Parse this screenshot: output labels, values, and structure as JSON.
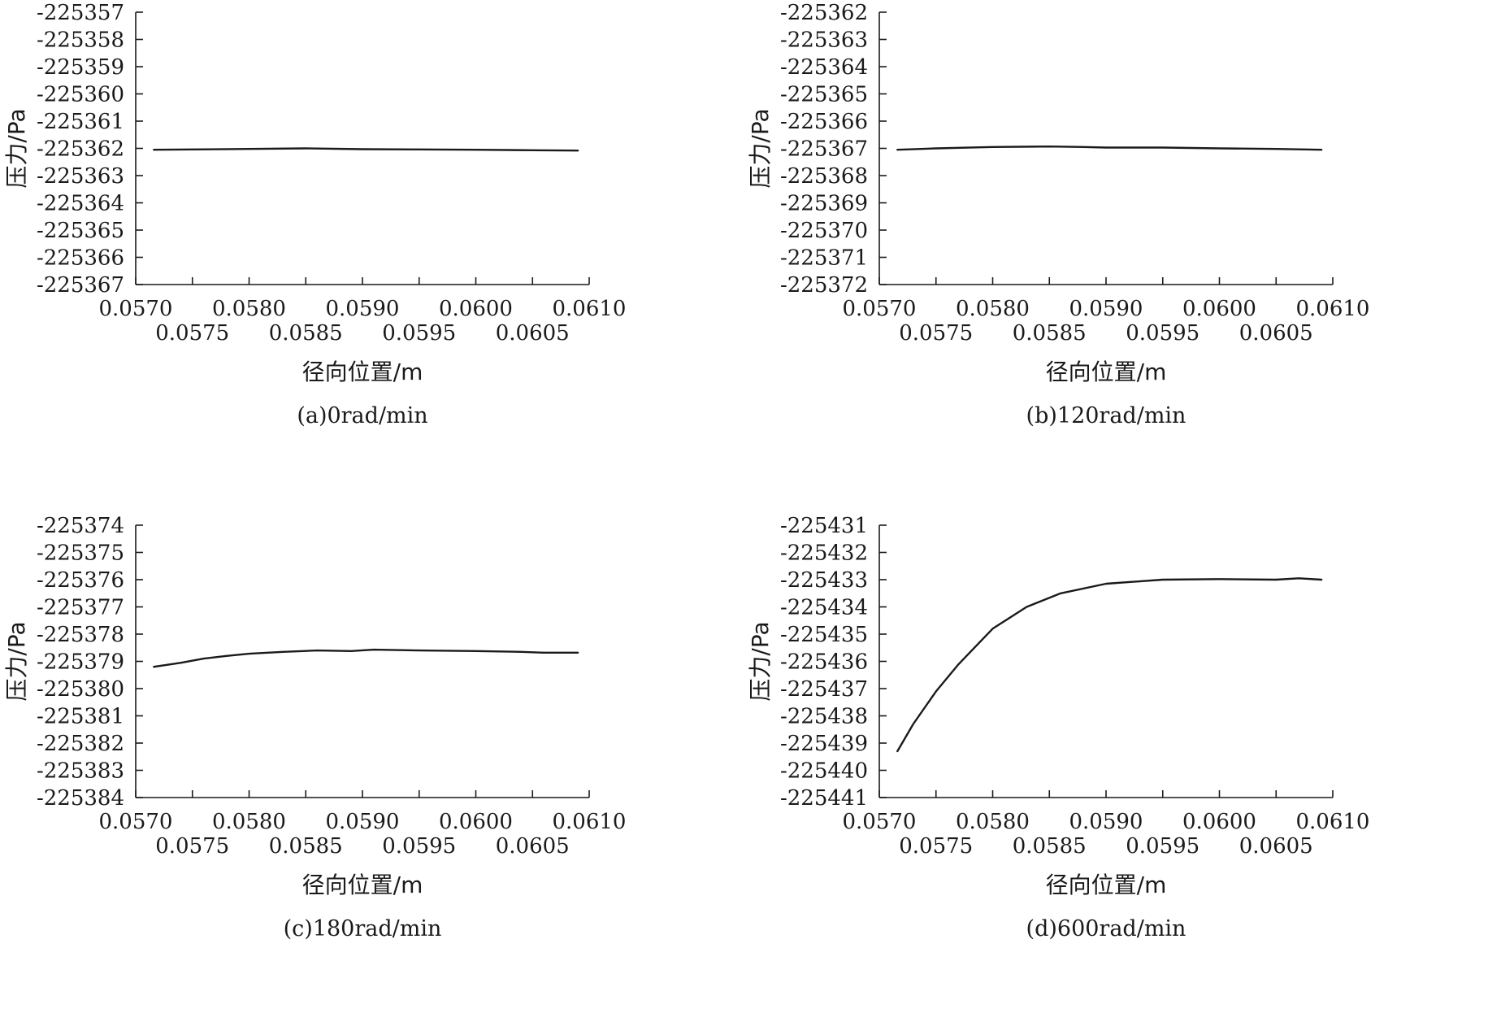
{
  "chart_data": [
    {
      "type": "line",
      "caption": "(a)0rad/min",
      "xlabel": "径向位置/m",
      "ylabel": "压力/Pa",
      "xlim": [
        0.057,
        0.061
      ],
      "ylim": [
        -225367,
        -225357
      ],
      "x_ticks_upper": [
        "0.0570",
        "0.0580",
        "0.0590",
        "0.0600",
        "0.0610"
      ],
      "x_ticks_lower": [
        "0.0575",
        "0.0585",
        "0.0595",
        "0.0605"
      ],
      "y_ticks": [
        "-225357",
        "-225358",
        "-225359",
        "-225360",
        "-225361",
        "-225362",
        "-225363",
        "-225364",
        "-225365",
        "-225366",
        "-225367"
      ],
      "series": [
        {
          "x": [
            0.05716,
            0.0575,
            0.058,
            0.0585,
            0.059,
            0.0595,
            0.06,
            0.0605,
            0.0609
          ],
          "y": [
            -225362.05,
            -225362.04,
            -225362.02,
            -225362.0,
            -225362.03,
            -225362.04,
            -225362.05,
            -225362.07,
            -225362.08
          ]
        }
      ]
    },
    {
      "type": "line",
      "caption": "(b)120rad/min",
      "xlabel": "径向位置/m",
      "ylabel": "压力/Pa",
      "xlim": [
        0.057,
        0.061
      ],
      "ylim": [
        -225372,
        -225362
      ],
      "x_ticks_upper": [
        "0.0570",
        "0.0580",
        "0.0590",
        "0.0600",
        "0.0610"
      ],
      "x_ticks_lower": [
        "0.0575",
        "0.0585",
        "0.0595",
        "0.0605"
      ],
      "y_ticks": [
        "-225362",
        "-225363",
        "-225364",
        "-225365",
        "-225366",
        "-225367",
        "-225368",
        "-225369",
        "-225370",
        "-225371",
        "-225372"
      ],
      "series": [
        {
          "x": [
            0.05716,
            0.0575,
            0.058,
            0.0585,
            0.0588,
            0.059,
            0.0595,
            0.06,
            0.0605,
            0.0609
          ],
          "y": [
            -225367.05,
            -225367.0,
            -225366.95,
            -225366.93,
            -225366.95,
            -225366.97,
            -225366.97,
            -225367.0,
            -225367.02,
            -225367.05
          ]
        }
      ]
    },
    {
      "type": "line",
      "caption": "(c)180rad/min",
      "xlabel": "径向位置/m",
      "ylabel": "压力/Pa",
      "xlim": [
        0.057,
        0.061
      ],
      "ylim": [
        -225384,
        -225374
      ],
      "x_ticks_upper": [
        "0.0570",
        "0.0580",
        "0.0590",
        "0.0600",
        "0.0610"
      ],
      "x_ticks_lower": [
        "0.0575",
        "0.0585",
        "0.0595",
        "0.0605"
      ],
      "y_ticks": [
        "-225374",
        "-225375",
        "-225376",
        "-225377",
        "-225378",
        "-225379",
        "-225380",
        "-225381",
        "-225382",
        "-225383",
        "-225384"
      ],
      "series": [
        {
          "x": [
            0.05716,
            0.0574,
            0.0576,
            0.0578,
            0.058,
            0.0583,
            0.0586,
            0.0589,
            0.0591,
            0.0595,
            0.06,
            0.0604,
            0.0606,
            0.0609
          ],
          "y": [
            -225379.2,
            -225379.05,
            -225378.9,
            -225378.8,
            -225378.72,
            -225378.65,
            -225378.6,
            -225378.62,
            -225378.57,
            -225378.6,
            -225378.62,
            -225378.65,
            -225378.68,
            -225378.68
          ]
        }
      ]
    },
    {
      "type": "line",
      "caption": "(d)600rad/min",
      "xlabel": "径向位置/m",
      "ylabel": "压力/Pa",
      "xlim": [
        0.057,
        0.061
      ],
      "ylim": [
        -225441,
        -225431
      ],
      "x_ticks_upper": [
        "0.0570",
        "0.0580",
        "0.0590",
        "0.0600",
        "0.0610"
      ],
      "x_ticks_lower": [
        "0.0575",
        "0.0585",
        "0.0595",
        "0.0605"
      ],
      "y_ticks": [
        "-225431",
        "-225432",
        "-225433",
        "-225434",
        "-225435",
        "-225436",
        "-225437",
        "-225438",
        "-225439",
        "-225440",
        "-225441"
      ],
      "series": [
        {
          "x": [
            0.05716,
            0.0573,
            0.0575,
            0.0577,
            0.058,
            0.0583,
            0.0586,
            0.059,
            0.0595,
            0.06,
            0.0605,
            0.0607,
            0.0609
          ],
          "y": [
            -225439.3,
            -225438.3,
            -225437.1,
            -225436.1,
            -225434.8,
            -225434.0,
            -225433.5,
            -225433.15,
            -225433.0,
            -225432.98,
            -225433.0,
            -225432.95,
            -225433.0
          ]
        }
      ]
    }
  ]
}
